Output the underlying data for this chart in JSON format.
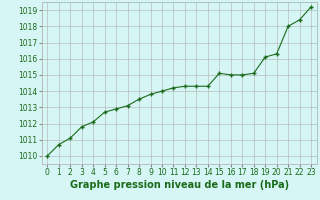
{
  "x": [
    0,
    1,
    2,
    3,
    4,
    5,
    6,
    7,
    8,
    9,
    10,
    11,
    12,
    13,
    14,
    15,
    16,
    17,
    18,
    19,
    20,
    21,
    22,
    23
  ],
  "y": [
    1010.0,
    1010.7,
    1011.1,
    1011.8,
    1012.1,
    1012.7,
    1012.9,
    1013.1,
    1013.5,
    1013.8,
    1014.0,
    1014.2,
    1014.3,
    1014.3,
    1014.3,
    1015.1,
    1015.0,
    1015.0,
    1015.1,
    1016.1,
    1016.3,
    1018.0,
    1018.4,
    1019.2
  ],
  "line_color": "#1a6b1a",
  "marker": "+",
  "marker_size": 3,
  "linewidth": 0.8,
  "xlabel": "Graphe pression niveau de la mer (hPa)",
  "ylabel": "",
  "ylim": [
    1009.5,
    1019.5
  ],
  "xlim": [
    -0.5,
    23.5
  ],
  "yticks": [
    1010,
    1011,
    1012,
    1013,
    1014,
    1015,
    1016,
    1017,
    1018,
    1019
  ],
  "xticks": [
    0,
    1,
    2,
    3,
    4,
    5,
    6,
    7,
    8,
    9,
    10,
    11,
    12,
    13,
    14,
    15,
    16,
    17,
    18,
    19,
    20,
    21,
    22,
    23
  ],
  "background_color": "#d6f5f5",
  "grid_color": "#b0b0b0",
  "tick_fontsize": 5.5,
  "xlabel_fontsize": 7.0,
  "xlabel_bold": true,
  "label_color": "#1a6b1a"
}
